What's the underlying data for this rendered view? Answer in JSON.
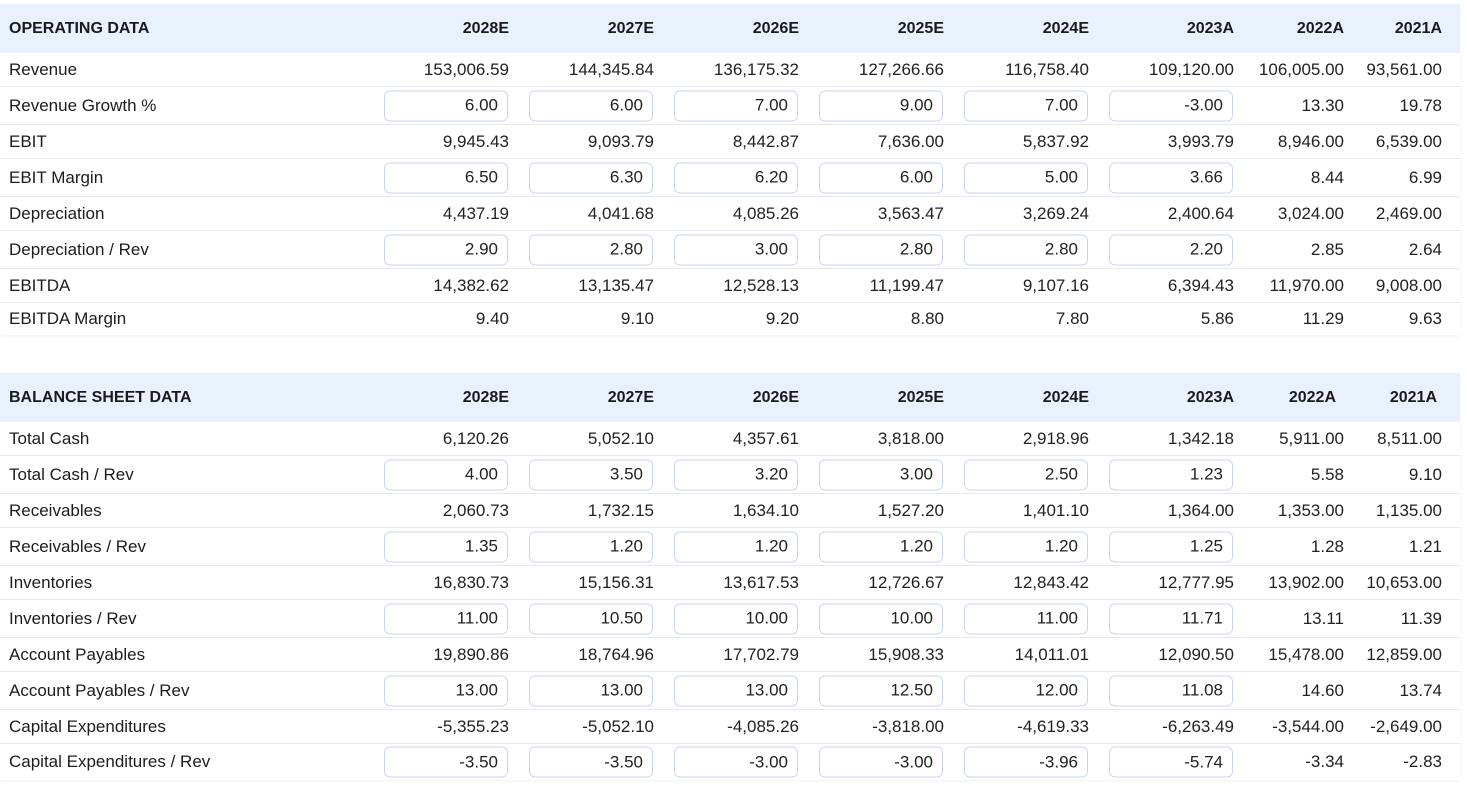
{
  "operating": {
    "title": "OPERATING DATA",
    "years": [
      "2028E",
      "2027E",
      "2026E",
      "2025E",
      "2024E",
      "2023A",
      "2022A",
      "2021A"
    ],
    "rows": [
      {
        "label": "Revenue",
        "editable": false,
        "values": [
          "153,006.59",
          "144,345.84",
          "136,175.32",
          "127,266.66",
          "116,758.40",
          "109,120.00",
          "106,005.00",
          "93,561.00"
        ]
      },
      {
        "label": "Revenue Growth %",
        "editable": true,
        "values": [
          "6.00",
          "6.00",
          "7.00",
          "9.00",
          "7.00",
          "-3.00",
          "13.30",
          "19.78"
        ]
      },
      {
        "label": "EBIT",
        "editable": false,
        "values": [
          "9,945.43",
          "9,093.79",
          "8,442.87",
          "7,636.00",
          "5,837.92",
          "3,993.79",
          "8,946.00",
          "6,539.00"
        ]
      },
      {
        "label": "EBIT Margin",
        "editable": true,
        "values": [
          "6.50",
          "6.30",
          "6.20",
          "6.00",
          "5.00",
          "3.66",
          "8.44",
          "6.99"
        ]
      },
      {
        "label": "Depreciation",
        "editable": false,
        "values": [
          "4,437.19",
          "4,041.68",
          "4,085.26",
          "3,563.47",
          "3,269.24",
          "2,400.64",
          "3,024.00",
          "2,469.00"
        ]
      },
      {
        "label": "Depreciation / Rev",
        "editable": true,
        "values": [
          "2.90",
          "2.80",
          "3.00",
          "2.80",
          "2.80",
          "2.20",
          "2.85",
          "2.64"
        ]
      },
      {
        "label": "EBITDA",
        "editable": false,
        "values": [
          "14,382.62",
          "13,135.47",
          "12,528.13",
          "11,199.47",
          "9,107.16",
          "6,394.43",
          "11,970.00",
          "9,008.00"
        ]
      },
      {
        "label": "EBITDA Margin",
        "editable": false,
        "values": [
          "9.40",
          "9.10",
          "9.20",
          "8.80",
          "7.80",
          "5.86",
          "11.29",
          "9.63"
        ]
      }
    ]
  },
  "balance": {
    "title": "BALANCE SHEET DATA",
    "years": [
      "2028E",
      "2027E",
      "2026E",
      "2025E",
      "2024E",
      "2023A",
      "2022A",
      "2021A"
    ],
    "rows": [
      {
        "label": "Total Cash",
        "editable": false,
        "values": [
          "6,120.26",
          "5,052.10",
          "4,357.61",
          "3,818.00",
          "2,918.96",
          "1,342.18",
          "5,911.00",
          "8,511.00"
        ]
      },
      {
        "label": "Total Cash / Rev",
        "editable": true,
        "values": [
          "4.00",
          "3.50",
          "3.20",
          "3.00",
          "2.50",
          "1.23",
          "5.58",
          "9.10"
        ]
      },
      {
        "label": "Receivables",
        "editable": false,
        "values": [
          "2,060.73",
          "1,732.15",
          "1,634.10",
          "1,527.20",
          "1,401.10",
          "1,364.00",
          "1,353.00",
          "1,135.00"
        ]
      },
      {
        "label": "Receivables / Rev",
        "editable": true,
        "values": [
          "1.35",
          "1.20",
          "1.20",
          "1.20",
          "1.20",
          "1.25",
          "1.28",
          "1.21"
        ]
      },
      {
        "label": "Inventories",
        "editable": false,
        "values": [
          "16,830.73",
          "15,156.31",
          "13,617.53",
          "12,726.67",
          "12,843.42",
          "12,777.95",
          "13,902.00",
          "10,653.00"
        ]
      },
      {
        "label": "Inventories / Rev",
        "editable": true,
        "values": [
          "11.00",
          "10.50",
          "10.00",
          "10.00",
          "11.00",
          "11.71",
          "13.11",
          "11.39"
        ]
      },
      {
        "label": "Account Payables",
        "editable": false,
        "values": [
          "19,890.86",
          "18,764.96",
          "17,702.79",
          "15,908.33",
          "14,011.01",
          "12,090.50",
          "15,478.00",
          "12,859.00"
        ]
      },
      {
        "label": "Account Payables / Rev",
        "editable": true,
        "values": [
          "13.00",
          "13.00",
          "13.00",
          "12.50",
          "12.00",
          "11.08",
          "14.60",
          "13.74"
        ]
      },
      {
        "label": "Capital Expenditures",
        "editable": false,
        "values": [
          "-5,355.23",
          "-5,052.10",
          "-4,085.26",
          "-3,818.00",
          "-4,619.33",
          "-6,263.49",
          "-3,544.00",
          "-2,649.00"
        ]
      },
      {
        "label": "Capital Expenditures / Rev",
        "editable": true,
        "values": [
          "-3.50",
          "-3.50",
          "-3.00",
          "-3.00",
          "-3.96",
          "-5.74",
          "-3.34",
          "-2.83"
        ]
      }
    ]
  }
}
